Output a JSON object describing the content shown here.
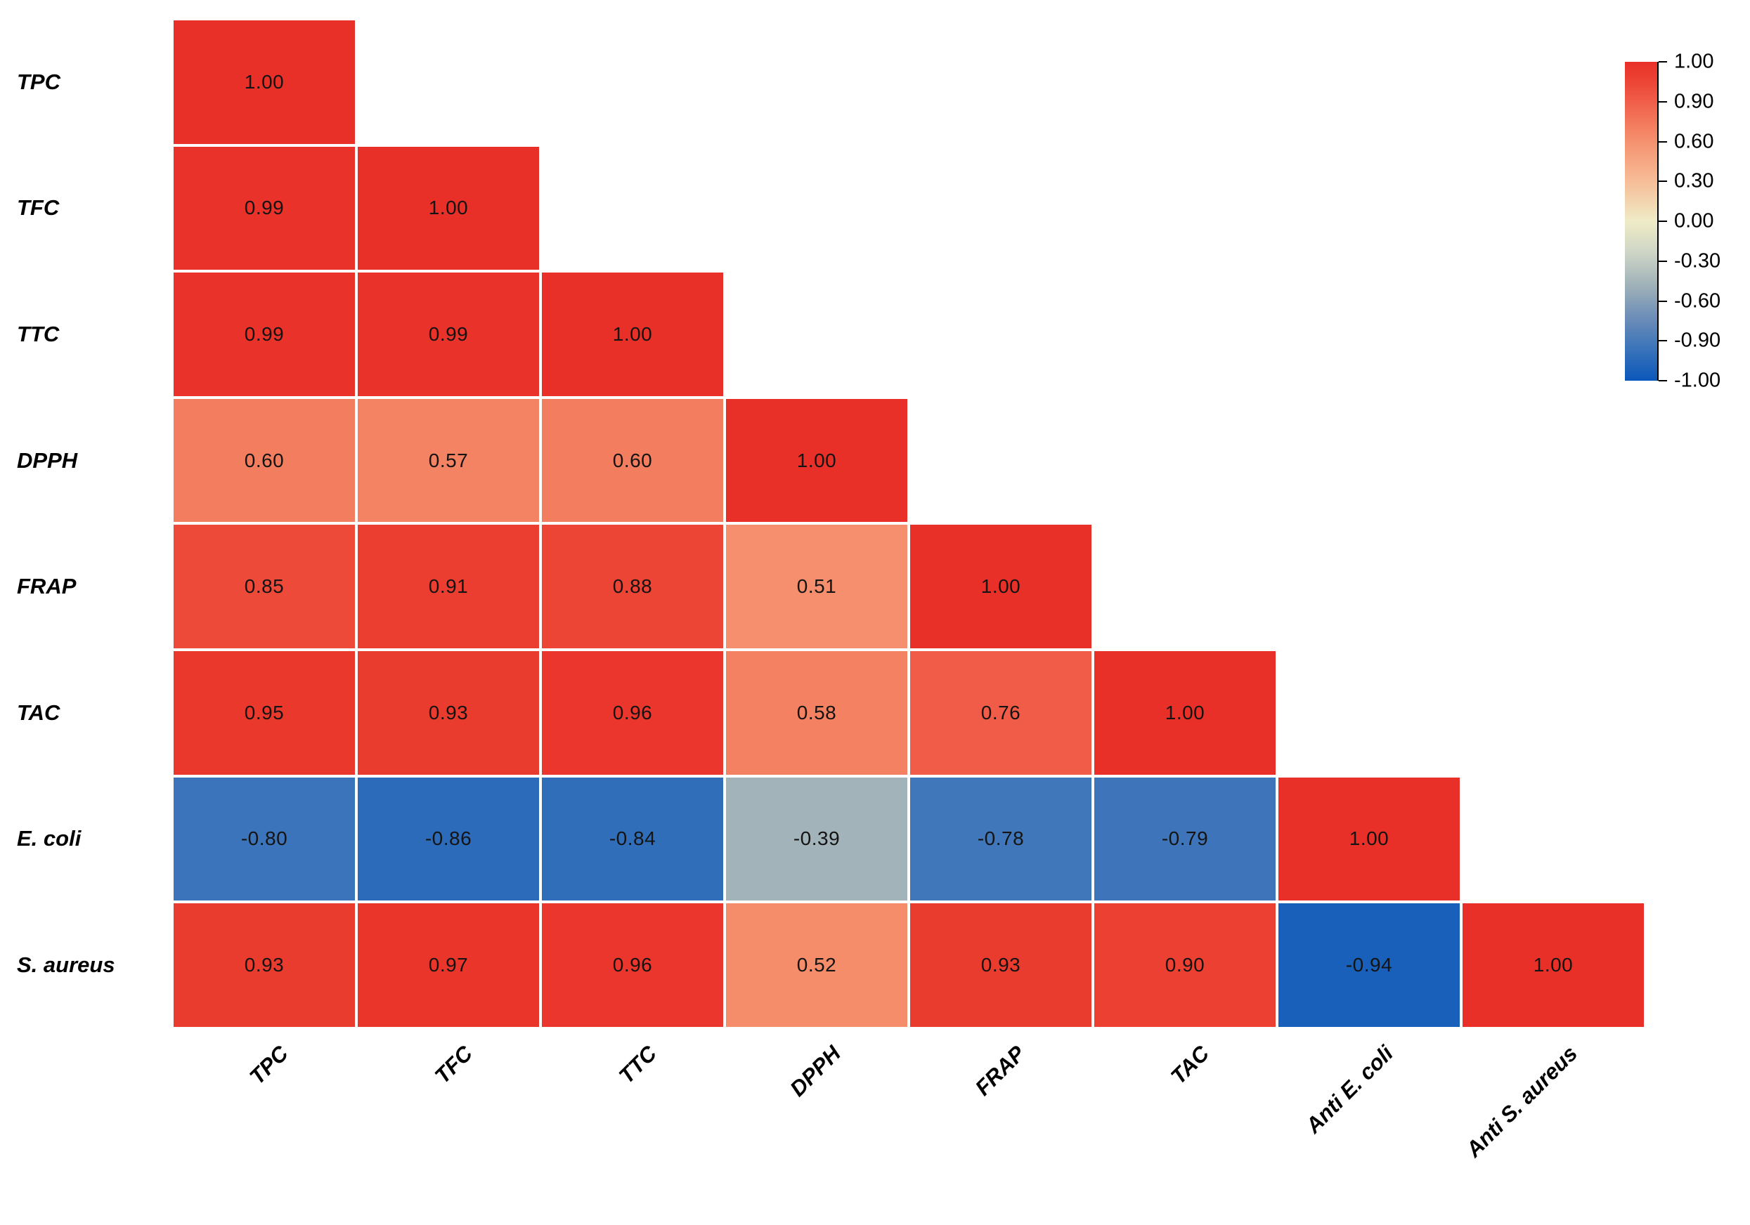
{
  "figure": {
    "background": "#ffffff"
  },
  "chart_data": {
    "type": "heatmap",
    "subtype": "lower-triangle correlation matrix",
    "title": "",
    "row_labels": [
      "TPC",
      "TFC",
      "TTC",
      "DPPH",
      "FRAP",
      "TAC",
      "E. coli",
      "S. aureus"
    ],
    "col_labels": [
      "TPC",
      "TFC",
      "TTC",
      "DPPH",
      "FRAP",
      "TAC",
      "Anti E. coli",
      "Anti S. aureus"
    ],
    "values": [
      [
        1.0
      ],
      [
        0.99,
        1.0
      ],
      [
        0.99,
        0.99,
        1.0
      ],
      [
        0.6,
        0.57,
        0.6,
        1.0
      ],
      [
        0.85,
        0.91,
        0.88,
        0.51,
        1.0
      ],
      [
        0.95,
        0.93,
        0.96,
        0.58,
        0.76,
        1.0
      ],
      [
        -0.8,
        -0.86,
        -0.84,
        -0.39,
        -0.78,
        -0.79,
        1.0
      ],
      [
        0.93,
        0.97,
        0.96,
        0.52,
        0.93,
        0.9,
        -0.94,
        1.0
      ]
    ],
    "value_format": "2dp",
    "value_range": [
      -1,
      1
    ],
    "grid": false,
    "legend_position": "top-right",
    "colorbar": {
      "orientation": "vertical",
      "tick_labels": [
        "1.00",
        "0.90",
        "0.60",
        "0.30",
        "0.00",
        "-0.30",
        "-0.60",
        "-0.90",
        "-1.00"
      ]
    },
    "colors": {
      "grid_gap": "#FFFFFF",
      "cell_text": "#141414",
      "label_text": "#000000",
      "positive_max": "#E93028",
      "zero": "#EFECC7",
      "negative_max": "#0A57BA",
      "stops": [
        [
          -1.0,
          "#0A57BA"
        ],
        [
          -0.8,
          "#3B74BA"
        ],
        [
          -0.6,
          "#6E8EB8"
        ],
        [
          -0.4,
          "#A0B2B8"
        ],
        [
          -0.2,
          "#CDD5C6"
        ],
        [
          0.0,
          "#EFECC7"
        ],
        [
          0.25,
          "#F6BD97"
        ],
        [
          0.5,
          "#F5916E"
        ],
        [
          0.75,
          "#F05E49"
        ],
        [
          0.9,
          "#EB4032"
        ],
        [
          1.0,
          "#E93028"
        ]
      ]
    }
  }
}
